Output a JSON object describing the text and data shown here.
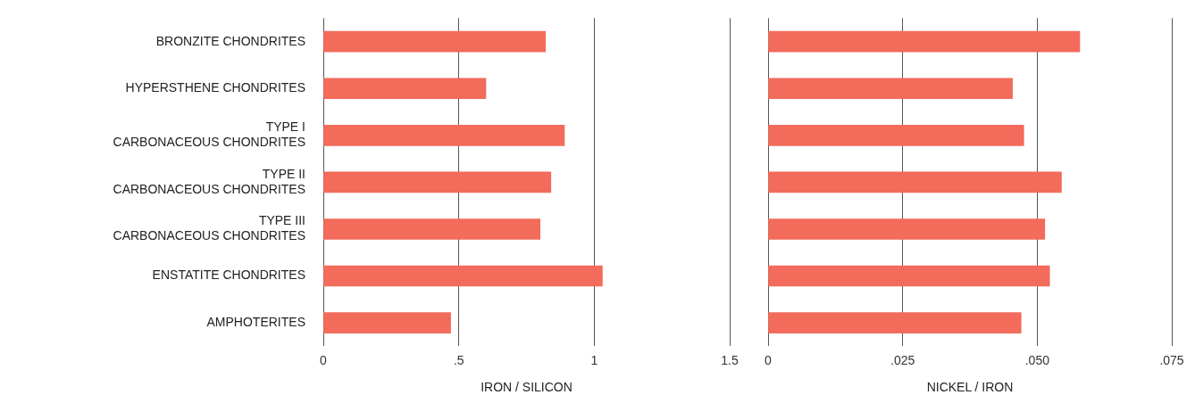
{
  "chart_data": [
    {
      "type": "bar",
      "orientation": "horizontal",
      "xlabel": "IRON / SILICON",
      "categories": [
        "BRONZITE CHONDRITES",
        "HYPERSTHENE CHONDRITES",
        "TYPE I\nCARBONACEOUS CHONDRITES",
        "TYPE II\nCARBONACEOUS CHONDRITES",
        "TYPE III\nCARBONACEOUS CHONDRITES",
        "ENSTATITE CHONDRITES",
        "AMPHOTERITES"
      ],
      "values": [
        0.82,
        0.6,
        0.89,
        0.84,
        0.8,
        1.03,
        0.47
      ],
      "color": "#f26b5b",
      "xlim": [
        0,
        1.5
      ],
      "xticks": [
        0,
        {
          "value": 0.5,
          "label": ".5"
        },
        1,
        1.5
      ],
      "grid": "x"
    },
    {
      "type": "bar",
      "orientation": "horizontal",
      "xlabel": "NICKEL / IRON",
      "categories": [
        null,
        null,
        null,
        null,
        null,
        null,
        null
      ],
      "values": [
        0.0579,
        0.0454,
        0.0475,
        0.0545,
        0.0514,
        0.0523,
        0.047
      ],
      "color": "#f26b5b",
      "xlim": [
        0,
        0.075
      ],
      "xticks": [
        0,
        {
          "value": 0.025,
          "label": ".025"
        },
        {
          "value": 0.05,
          "label": ".050"
        },
        {
          "value": 0.075,
          "label": ".075"
        }
      ],
      "grid": "x"
    }
  ]
}
